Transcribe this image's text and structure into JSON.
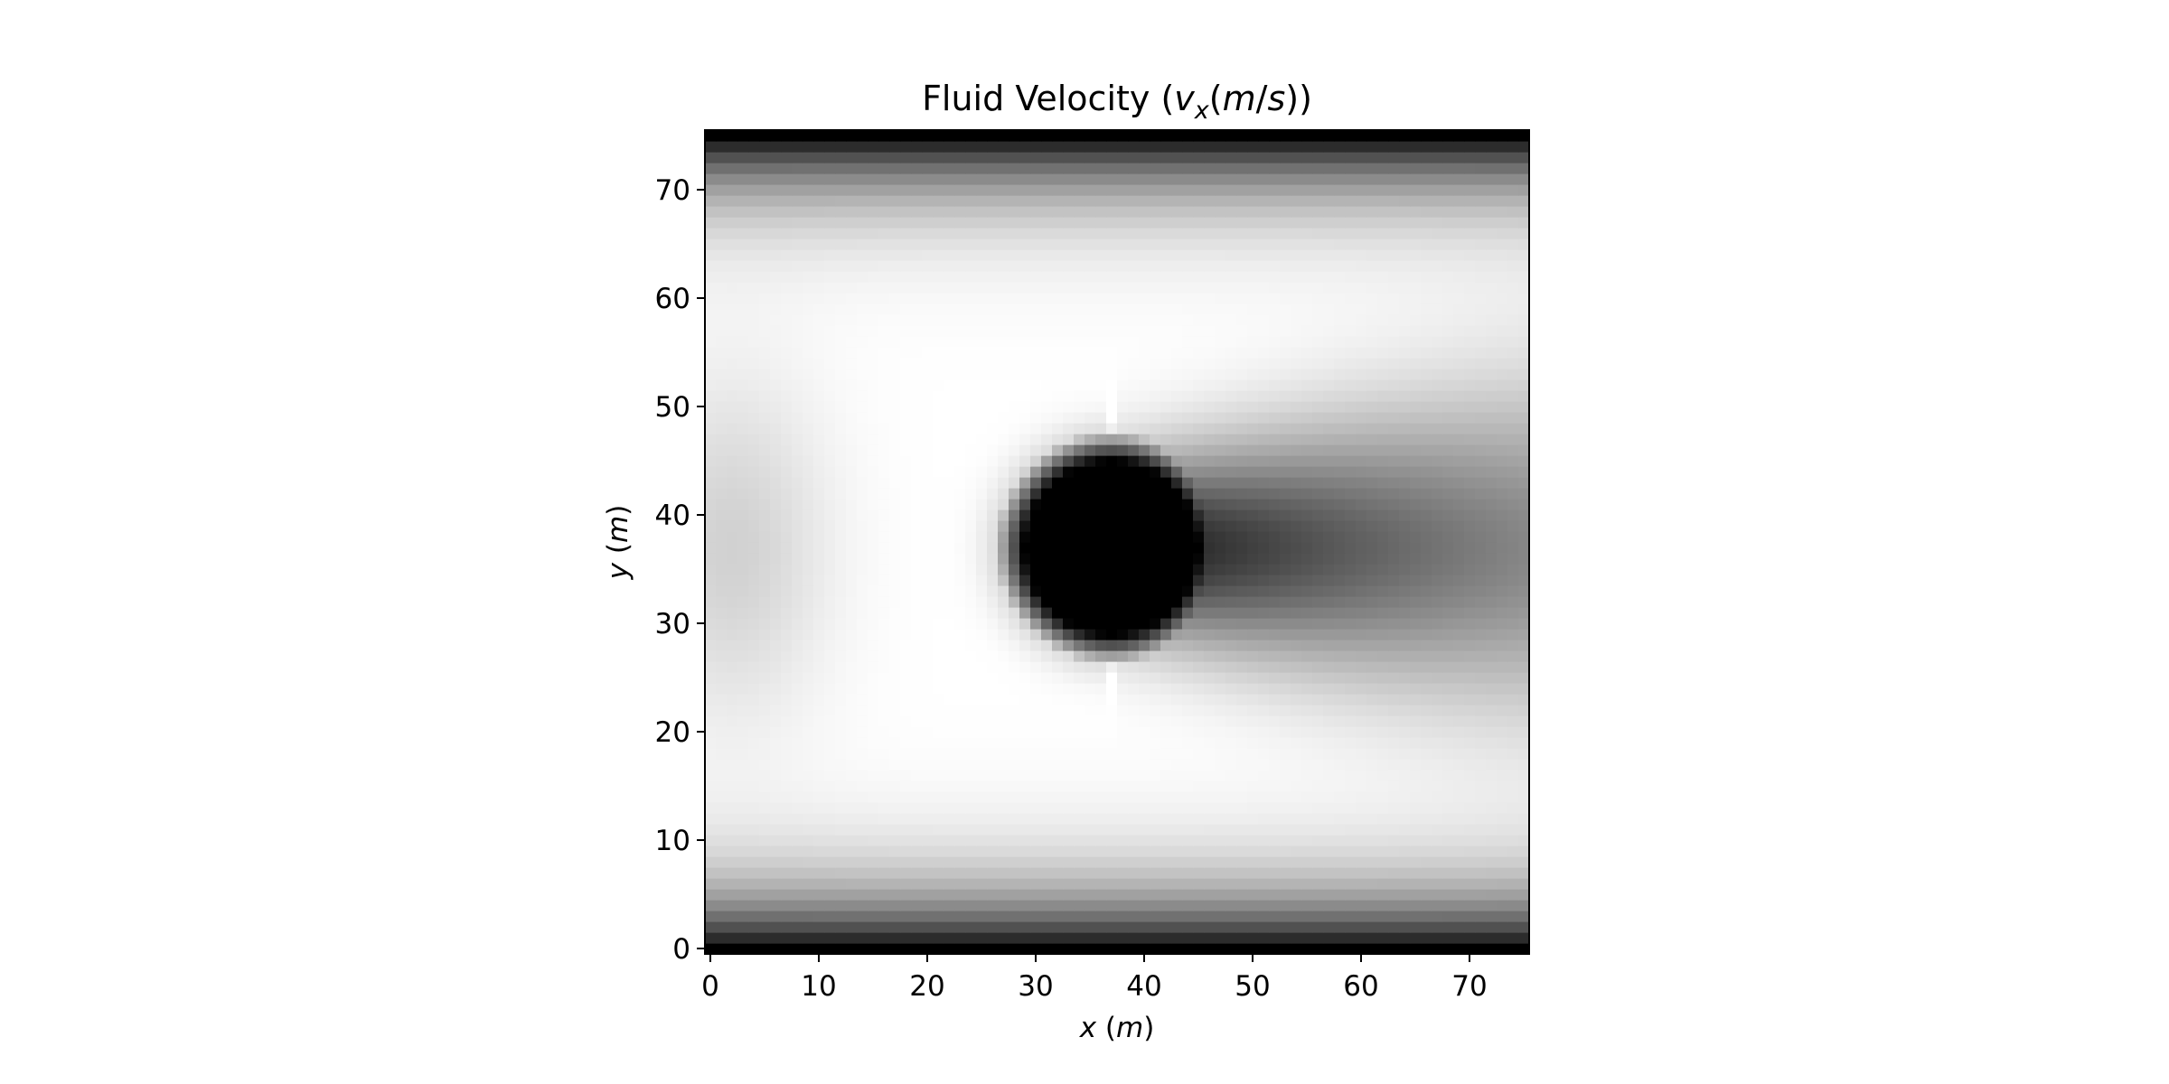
{
  "chart_data": {
    "type": "heatmap",
    "title": {
      "prefix": "Fluid Velocity (",
      "var": "v",
      "sub": "x",
      "open": "(",
      "unit_m": "m",
      "slash": "/",
      "unit_s": "s",
      "close": "))"
    },
    "xlabel": {
      "var": "x",
      "open": " (",
      "unit": "m",
      "close": ")"
    },
    "ylabel": {
      "var": "y",
      "open": " (",
      "unit": "m",
      "close": ")"
    },
    "xlim": [
      -0.5,
      75.5
    ],
    "ylim": [
      -0.5,
      75.5
    ],
    "xticks": [
      0,
      10,
      20,
      30,
      40,
      50,
      60,
      70
    ],
    "yticks": [
      0,
      10,
      20,
      30,
      40,
      50,
      60,
      70
    ],
    "grid_size": [
      76,
      76
    ],
    "colormap": "gray (black = low, white = high)",
    "grid": false,
    "field_features": {
      "obstacle": {
        "shape": "circle",
        "center": [
          37,
          37
        ],
        "radius": 8,
        "value": "minimum (black)"
      },
      "walls": {
        "y_values": [
          0,
          75
        ],
        "value": "minimum (black)"
      },
      "wake": "dark region extending in +x from the obstacle, fading toward x = 75",
      "freestream": "high velocity (white) around y = 15-60"
    }
  }
}
